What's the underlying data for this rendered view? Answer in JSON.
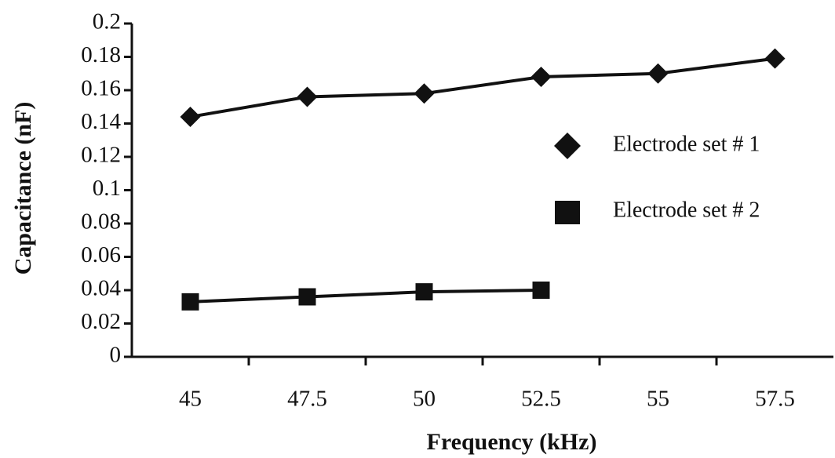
{
  "chart_data": {
    "type": "line",
    "x_label": "Frequency (kHz)",
    "y_label": "Capacitance (nF)",
    "categories": [
      "45",
      "47.5",
      "50",
      "52.5",
      "55",
      "57.5"
    ],
    "series": [
      {
        "name": "Electrode set # 1",
        "color": "#111111",
        "marker": "diamond",
        "values": [
          0.144,
          0.156,
          0.158,
          0.168,
          0.17,
          0.179
        ]
      },
      {
        "name": "Electrode set # 2",
        "color": "#111111",
        "marker": "square",
        "values": [
          0.033,
          0.036,
          0.039,
          0.04,
          null,
          null
        ]
      }
    ],
    "ylim": [
      0,
      0.2
    ],
    "yticks": [
      0,
      0.02,
      0.04,
      0.06,
      0.08,
      0.1,
      0.12,
      0.14,
      0.16,
      0.18,
      0.2
    ],
    "grid": false,
    "legend": "right"
  }
}
